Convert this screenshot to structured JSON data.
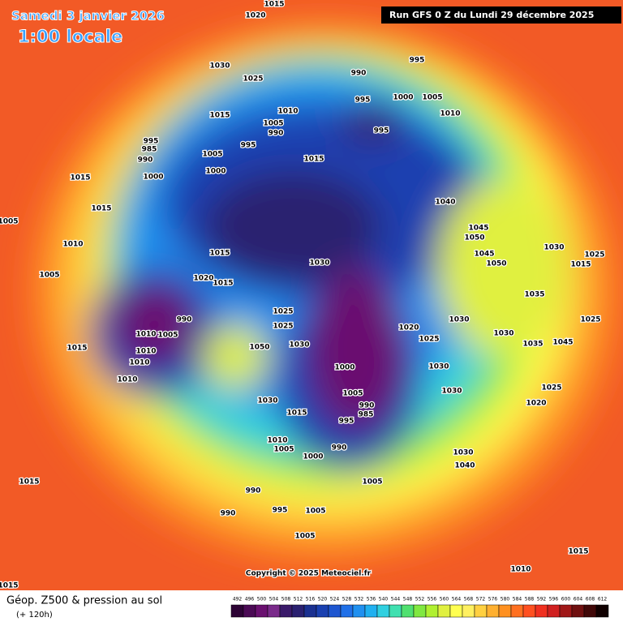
{
  "header": {
    "date": "Samedi 3 janvier 2026",
    "time": "1:00 locale",
    "run": "Run GFS 0 Z du Lundi 29 décembre 2025"
  },
  "map": {
    "copyright": "Copyright © 2025 Meteociel.fr",
    "isobar_labels": [
      1015,
      1020,
      995,
      1030,
      990,
      1025,
      995,
      1000,
      1005,
      1015,
      1010,
      1010,
      1005,
      990,
      995,
      995,
      985,
      995,
      1005,
      990,
      1015,
      1000,
      1000,
      1015,
      1040,
      1015,
      1005,
      1045,
      1050,
      1010,
      1030,
      1015,
      1045,
      1015,
      1025,
      1030,
      1050,
      1005,
      1020,
      1015,
      1035,
      1025,
      990,
      1030,
      1025,
      1025,
      1020,
      1030,
      1010,
      1005,
      1050,
      1030,
      1025,
      1035,
      1045,
      1015,
      1010,
      1010,
      1030,
      1000,
      1010,
      1025,
      1030,
      1005,
      990,
      1020,
      1030,
      985,
      1015,
      995,
      1010,
      1005,
      990,
      1000,
      1030,
      1040,
      1015,
      1005,
      990,
      995,
      1005,
      990,
      1005,
      1015,
      1010,
      1015
    ]
  },
  "legend": {
    "title": "Géop. Z500 & pression au sol",
    "lead": "(+ 120h)",
    "ticks": [
      492,
      496,
      500,
      504,
      508,
      512,
      516,
      520,
      524,
      528,
      532,
      536,
      540,
      544,
      548,
      552,
      556,
      560,
      564,
      568,
      572,
      576,
      580,
      584,
      588,
      592,
      596,
      600,
      604,
      608,
      612
    ],
    "colors": [
      "#2d0335",
      "#4b0a55",
      "#6a1070",
      "#7a2a8a",
      "#3a1a6a",
      "#2a2070",
      "#1a3090",
      "#1a40b0",
      "#1e56d0",
      "#2070e8",
      "#2090f0",
      "#20b0f0",
      "#30d0e0",
      "#40e0b0",
      "#50e070",
      "#80e840",
      "#b0f030",
      "#e0f040",
      "#ffff50",
      "#fff060",
      "#ffd040",
      "#ffb030",
      "#ff9020",
      "#ff7020",
      "#ff5020",
      "#f03020",
      "#d02020",
      "#a01818",
      "#701010",
      "#400808",
      "#100000"
    ]
  }
}
